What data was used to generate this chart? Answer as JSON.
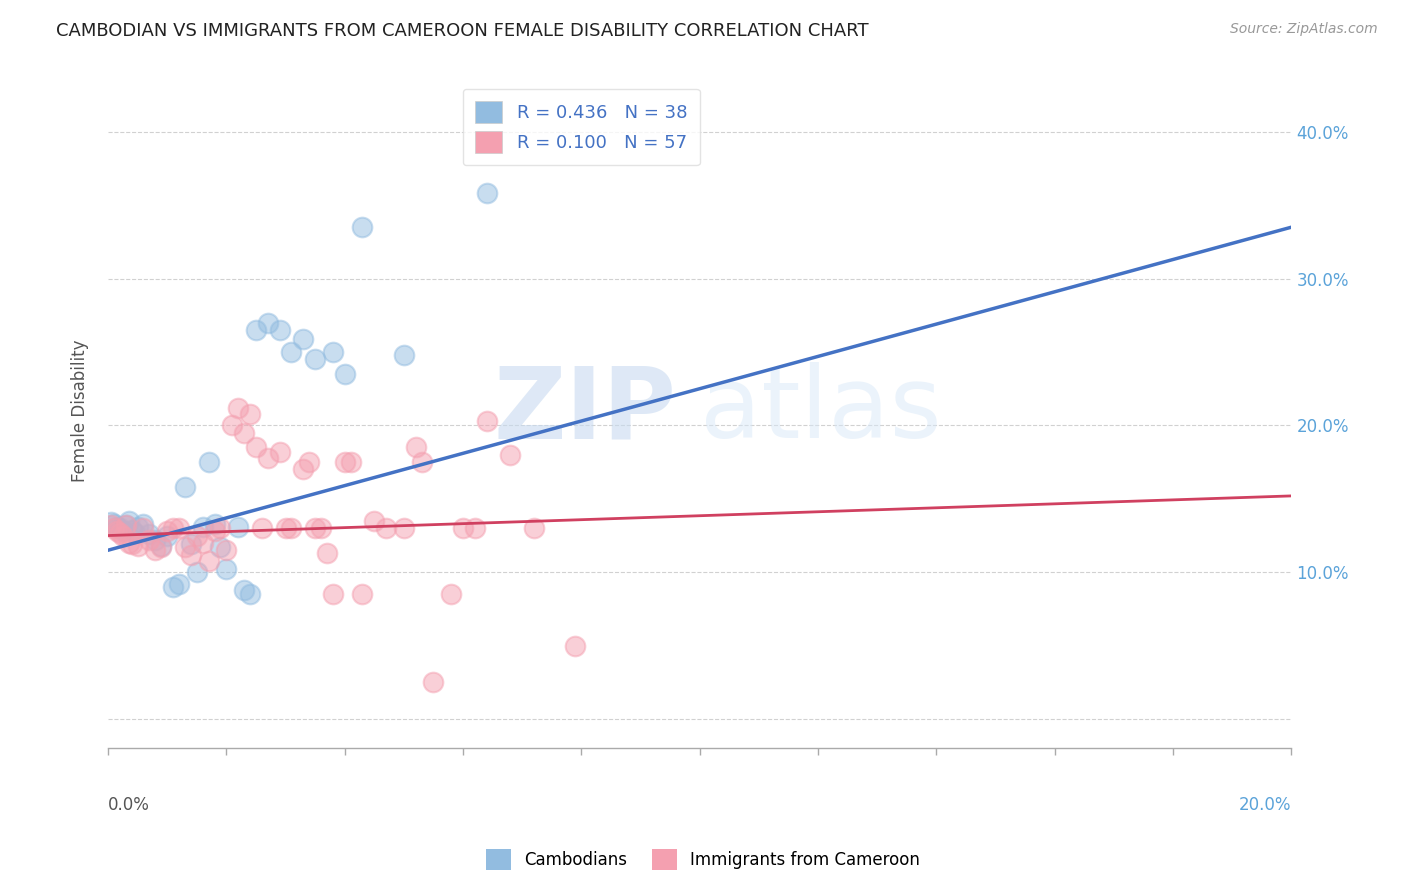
{
  "title": "CAMBODIAN VS IMMIGRANTS FROM CAMEROON FEMALE DISABILITY CORRELATION CHART",
  "source": "Source: ZipAtlas.com",
  "ylabel": "Female Disability",
  "x_range": [
    0.0,
    0.2
  ],
  "y_range": [
    -0.02,
    0.44
  ],
  "y_ticks": [
    0.0,
    0.1,
    0.2,
    0.3,
    0.4
  ],
  "right_y_labels": [
    "",
    "10.0%",
    "20.0%",
    "30.0%",
    "40.0%"
  ],
  "blue_scatter": [
    [
      0.0005,
      0.134
    ],
    [
      0.001,
      0.133
    ],
    [
      0.0015,
      0.131
    ],
    [
      0.002,
      0.13
    ],
    [
      0.0025,
      0.128
    ],
    [
      0.003,
      0.132
    ],
    [
      0.0035,
      0.135
    ],
    [
      0.004,
      0.129
    ],
    [
      0.0045,
      0.127
    ],
    [
      0.005,
      0.131
    ],
    [
      0.006,
      0.133
    ],
    [
      0.007,
      0.126
    ],
    [
      0.008,
      0.122
    ],
    [
      0.009,
      0.118
    ],
    [
      0.01,
      0.125
    ],
    [
      0.011,
      0.09
    ],
    [
      0.012,
      0.092
    ],
    [
      0.013,
      0.158
    ],
    [
      0.014,
      0.119
    ],
    [
      0.015,
      0.1
    ],
    [
      0.016,
      0.131
    ],
    [
      0.017,
      0.175
    ],
    [
      0.018,
      0.133
    ],
    [
      0.019,
      0.117
    ],
    [
      0.02,
      0.102
    ],
    [
      0.022,
      0.131
    ],
    [
      0.023,
      0.088
    ],
    [
      0.024,
      0.085
    ],
    [
      0.025,
      0.265
    ],
    [
      0.027,
      0.27
    ],
    [
      0.029,
      0.265
    ],
    [
      0.031,
      0.25
    ],
    [
      0.033,
      0.259
    ],
    [
      0.035,
      0.245
    ],
    [
      0.038,
      0.25
    ],
    [
      0.04,
      0.235
    ],
    [
      0.043,
      0.335
    ],
    [
      0.05,
      0.248
    ],
    [
      0.064,
      0.358
    ]
  ],
  "pink_scatter": [
    [
      0.0005,
      0.132
    ],
    [
      0.001,
      0.13
    ],
    [
      0.0015,
      0.128
    ],
    [
      0.002,
      0.127
    ],
    [
      0.0025,
      0.125
    ],
    [
      0.003,
      0.132
    ],
    [
      0.0035,
      0.12
    ],
    [
      0.004,
      0.119
    ],
    [
      0.005,
      0.118
    ],
    [
      0.006,
      0.13
    ],
    [
      0.007,
      0.122
    ],
    [
      0.008,
      0.115
    ],
    [
      0.009,
      0.117
    ],
    [
      0.01,
      0.128
    ],
    [
      0.011,
      0.13
    ],
    [
      0.012,
      0.13
    ],
    [
      0.013,
      0.117
    ],
    [
      0.014,
      0.112
    ],
    [
      0.015,
      0.125
    ],
    [
      0.016,
      0.12
    ],
    [
      0.017,
      0.108
    ],
    [
      0.018,
      0.128
    ],
    [
      0.019,
      0.13
    ],
    [
      0.02,
      0.115
    ],
    [
      0.021,
      0.2
    ],
    [
      0.022,
      0.212
    ],
    [
      0.023,
      0.195
    ],
    [
      0.024,
      0.208
    ],
    [
      0.025,
      0.185
    ],
    [
      0.026,
      0.13
    ],
    [
      0.027,
      0.178
    ],
    [
      0.029,
      0.182
    ],
    [
      0.03,
      0.13
    ],
    [
      0.031,
      0.13
    ],
    [
      0.033,
      0.17
    ],
    [
      0.034,
      0.175
    ],
    [
      0.035,
      0.13
    ],
    [
      0.036,
      0.13
    ],
    [
      0.037,
      0.113
    ],
    [
      0.038,
      0.085
    ],
    [
      0.04,
      0.175
    ],
    [
      0.041,
      0.175
    ],
    [
      0.043,
      0.085
    ],
    [
      0.045,
      0.135
    ],
    [
      0.047,
      0.13
    ],
    [
      0.05,
      0.13
    ],
    [
      0.052,
      0.185
    ],
    [
      0.053,
      0.175
    ],
    [
      0.055,
      0.025
    ],
    [
      0.058,
      0.085
    ],
    [
      0.06,
      0.13
    ],
    [
      0.062,
      0.13
    ],
    [
      0.064,
      0.203
    ],
    [
      0.068,
      0.18
    ],
    [
      0.072,
      0.13
    ],
    [
      0.079,
      0.05
    ]
  ],
  "blue_line": {
    "x": [
      0.0,
      0.2
    ],
    "y": [
      0.115,
      0.335
    ]
  },
  "pink_line": {
    "x": [
      0.0,
      0.2
    ],
    "y": [
      0.125,
      0.152
    ]
  },
  "watermark_zip": "ZIP",
  "watermark_atlas": "atlas",
  "background_color": "#ffffff",
  "grid_color": "#cccccc",
  "title_color": "#222222",
  "blue_scatter_color": "#92bce0",
  "pink_scatter_color": "#f4a0b0",
  "blue_line_color": "#4472c4",
  "pink_line_color": "#d04060",
  "right_axis_tick_color": "#5ba3d9",
  "legend_r_color": "#4472c4",
  "legend_n_color": "#c04060"
}
